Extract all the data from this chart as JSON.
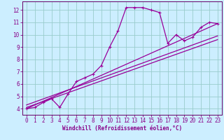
{
  "bg_color": "#cceeff",
  "grid_color": "#99cccc",
  "line_color": "#990099",
  "xlim": [
    -0.5,
    23.5
  ],
  "ylim": [
    3.5,
    12.7
  ],
  "xticks": [
    0,
    1,
    2,
    3,
    4,
    5,
    6,
    7,
    8,
    9,
    10,
    11,
    12,
    13,
    14,
    15,
    16,
    17,
    18,
    19,
    20,
    21,
    22,
    23
  ],
  "yticks": [
    4,
    5,
    6,
    7,
    8,
    9,
    10,
    11,
    12
  ],
  "xlabel": "Windchill (Refroidissement éolien,°C)",
  "series": [
    [
      0,
      4.0
    ],
    [
      1,
      4.1
    ],
    [
      2,
      4.5
    ],
    [
      3,
      4.8
    ],
    [
      4,
      4.1
    ],
    [
      5,
      5.2
    ],
    [
      6,
      6.2
    ],
    [
      7,
      6.5
    ],
    [
      8,
      6.8
    ],
    [
      9,
      7.5
    ],
    [
      10,
      9.0
    ],
    [
      11,
      10.3
    ],
    [
      12,
      12.2
    ],
    [
      13,
      12.2
    ],
    [
      14,
      12.2
    ],
    [
      15,
      12.0
    ],
    [
      16,
      11.8
    ],
    [
      17,
      9.3
    ],
    [
      18,
      10.0
    ],
    [
      19,
      9.5
    ],
    [
      20,
      9.8
    ],
    [
      21,
      10.6
    ],
    [
      22,
      11.0
    ],
    [
      23,
      10.9
    ]
  ],
  "straight_lines": [
    [
      [
        0,
        4.0
      ],
      [
        23,
        10.9
      ]
    ],
    [
      [
        0,
        4.1
      ],
      [
        23,
        9.6
      ]
    ],
    [
      [
        0,
        4.3
      ],
      [
        23,
        9.9
      ]
    ]
  ],
  "tick_fontsize": 5.5,
  "xlabel_fontsize": 5.5,
  "spine_color": "#660066",
  "tick_color": "#880088"
}
